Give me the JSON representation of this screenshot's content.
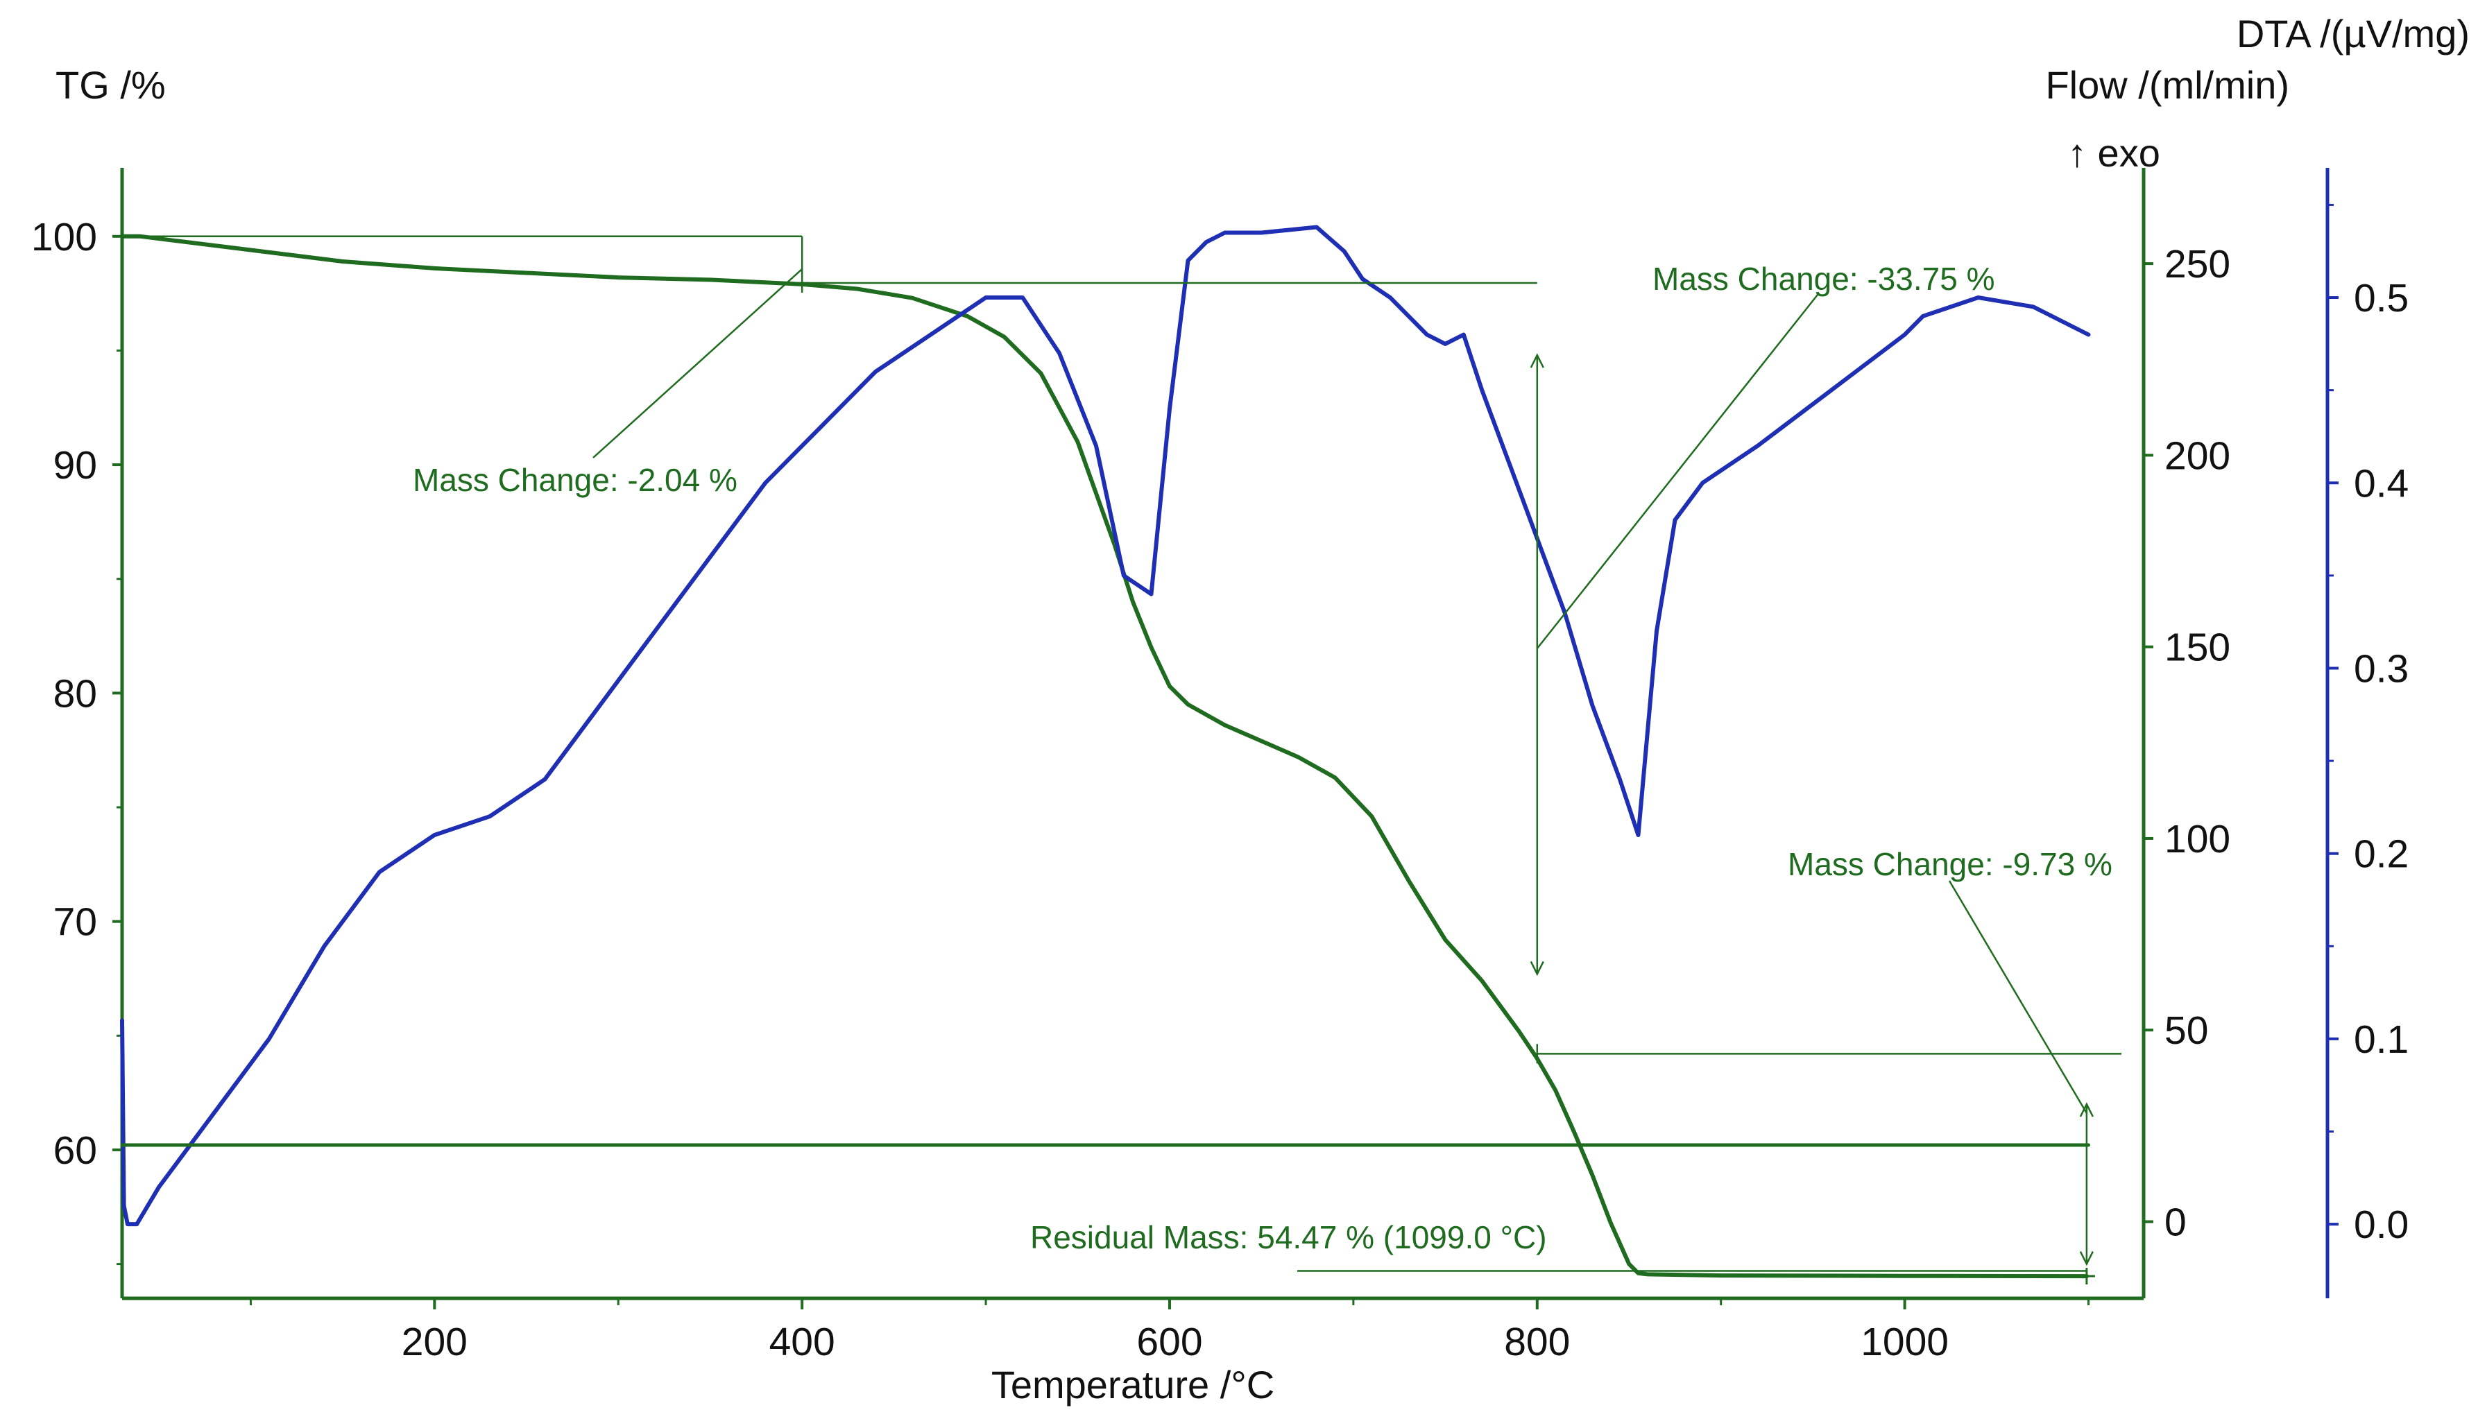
{
  "chart_data": {
    "type": "line",
    "title": "",
    "xlabel": "Temperature /°C",
    "xlim": [
      30,
      1130
    ],
    "x_ticks": [
      200,
      400,
      600,
      800,
      1000
    ],
    "x_minor_step": 100,
    "axes": {
      "tg": {
        "label": "TG /%",
        "lim": [
          53.5,
          103.0
        ],
        "ticks": [
          60,
          70,
          80,
          90,
          100
        ],
        "color": "#1f6b1f",
        "side": "left"
      },
      "flow": {
        "label": "Flow /(ml/min)",
        "lim": [
          -20,
          275
        ],
        "ticks": [
          0,
          50,
          100,
          150,
          200,
          250
        ],
        "color": "#1f6b1f",
        "side": "right-inner"
      },
      "dta": {
        "label": "DTA /(µV/mg)",
        "lim": [
          -0.04,
          0.57
        ],
        "ticks": [
          0.0,
          0.1,
          0.2,
          0.3,
          0.4,
          0.5
        ],
        "color": "#1f2fb3",
        "side": "right-outer"
      }
    },
    "exo_marker": "↑ exo",
    "series": [
      {
        "name": "TG",
        "axis": "tg",
        "color": "#1f6b1f",
        "x": [
          30,
          40,
          60,
          100,
          150,
          200,
          250,
          300,
          350,
          400,
          430,
          460,
          490,
          510,
          530,
          550,
          570,
          580,
          590,
          600,
          610,
          630,
          650,
          670,
          690,
          710,
          730,
          750,
          770,
          790,
          800,
          810,
          820,
          830,
          840,
          850,
          855,
          860,
          900,
          1000,
          1099
        ],
        "values": [
          100.0,
          100.0,
          99.8,
          99.4,
          98.9,
          98.6,
          98.4,
          98.2,
          98.1,
          97.9,
          97.7,
          97.3,
          96.5,
          95.6,
          94.0,
          91.0,
          86.5,
          84.0,
          82.0,
          80.3,
          79.5,
          78.6,
          77.9,
          77.2,
          76.3,
          74.6,
          71.8,
          69.2,
          67.4,
          65.2,
          64.0,
          62.6,
          60.8,
          58.9,
          56.8,
          55.0,
          54.6,
          54.55,
          54.5,
          54.48,
          54.47
        ]
      },
      {
        "name": "DTA",
        "axis": "dta",
        "color": "#1f2fb3",
        "x": [
          30,
          31,
          33,
          38,
          50,
          80,
          110,
          140,
          170,
          200,
          230,
          260,
          290,
          320,
          350,
          380,
          410,
          440,
          470,
          500,
          520,
          540,
          560,
          575,
          590,
          600,
          610,
          620,
          630,
          650,
          680,
          695,
          705,
          720,
          740,
          750,
          760,
          770,
          785,
          800,
          815,
          830,
          845,
          855,
          865,
          875,
          890,
          920,
          960,
          1000,
          1010,
          1040,
          1070,
          1100
        ],
        "values": [
          0.11,
          0.01,
          0.0,
          0.0,
          0.02,
          0.06,
          0.1,
          0.15,
          0.19,
          0.21,
          0.22,
          0.24,
          0.28,
          0.32,
          0.36,
          0.4,
          0.43,
          0.46,
          0.48,
          0.5,
          0.5,
          0.47,
          0.42,
          0.35,
          0.34,
          0.44,
          0.52,
          0.53,
          0.535,
          0.535,
          0.538,
          0.525,
          0.51,
          0.5,
          0.48,
          0.475,
          0.48,
          0.45,
          0.41,
          0.37,
          0.33,
          0.28,
          0.24,
          0.21,
          0.32,
          0.38,
          0.4,
          0.42,
          0.45,
          0.48,
          0.49,
          0.5,
          0.495,
          0.48
        ]
      },
      {
        "name": "Flow",
        "axis": "flow",
        "color": "#1f6b1f",
        "x": [
          30,
          1100
        ],
        "values": [
          20,
          20
        ]
      }
    ],
    "annotations": [
      {
        "text": "Mass Change: -2.04 %"
      },
      {
        "text": "Mass Change: -33.75 %"
      },
      {
        "text": "Mass Change: -9.73 %"
      },
      {
        "text": "Residual Mass: 54.47 % (1099.0 °C)"
      }
    ],
    "mass_steps": [
      {
        "from_x": 30,
        "to_x": 400,
        "from_y": 100.0,
        "to_y": 97.96
      },
      {
        "from_x": 400,
        "to_x": 800,
        "from_y": 97.96,
        "to_y": 64.21
      },
      {
        "from_x": 800,
        "to_x": 1099,
        "from_y": 64.21,
        "to_y": 54.48
      }
    ],
    "residual": {
      "x": 1099,
      "y": 54.47
    }
  }
}
